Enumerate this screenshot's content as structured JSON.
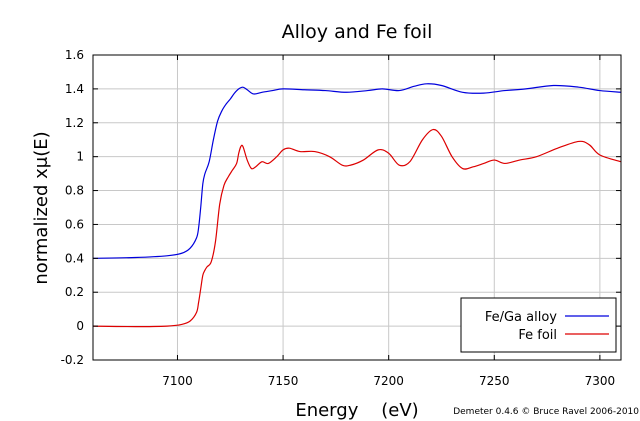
{
  "chart_data": {
    "type": "line",
    "title": "Alloy and Fe foil",
    "xlabel": "Energy    (eV)",
    "ylabel": "normalized xμ(E)",
    "credit": "Demeter 0.4.6 © Bruce Ravel 2006-2010",
    "xlim": [
      7060,
      7310
    ],
    "ylim": [
      -0.2,
      1.6
    ],
    "xticks": [
      7100,
      7150,
      7200,
      7250,
      7300
    ],
    "yticks": [
      -0.2,
      0,
      0.2,
      0.4,
      0.6,
      0.8,
      1,
      1.2,
      1.4,
      1.6
    ],
    "xtick_labels": [
      "7100",
      "7150",
      "7200",
      "7250",
      "7300"
    ],
    "ytick_labels": [
      "-0.2",
      "0",
      "0.2",
      "0.4",
      "0.6",
      "0.8",
      "1",
      "1.2",
      "1.4",
      "1.6"
    ],
    "grid": true,
    "legend_position": "bottom-right",
    "series": [
      {
        "name": "Fe/Ga alloy",
        "color": "#0000dd",
        "x": [
          7060,
          7080,
          7095,
          7102,
          7106,
          7109,
          7110,
          7111,
          7112,
          7113,
          7115,
          7117,
          7119,
          7121,
          7123,
          7125,
          7127,
          7129,
          7131,
          7133,
          7136,
          7140,
          7145,
          7150,
          7160,
          7170,
          7180,
          7190,
          7197,
          7205,
          7212,
          7218,
          7225,
          7235,
          7245,
          7255,
          7265,
          7278,
          7290,
          7300,
          7310
        ],
        "y": [
          0.4,
          0.405,
          0.415,
          0.43,
          0.46,
          0.52,
          0.58,
          0.7,
          0.84,
          0.9,
          0.97,
          1.1,
          1.21,
          1.27,
          1.31,
          1.34,
          1.375,
          1.4,
          1.41,
          1.395,
          1.37,
          1.38,
          1.39,
          1.4,
          1.395,
          1.39,
          1.38,
          1.39,
          1.4,
          1.39,
          1.415,
          1.43,
          1.42,
          1.38,
          1.375,
          1.39,
          1.4,
          1.42,
          1.41,
          1.39,
          1.38
        ]
      },
      {
        "name": "Fe foil",
        "color": "#dd0000",
        "x": [
          7060,
          7080,
          7095,
          7102,
          7106,
          7109,
          7110,
          7111,
          7112,
          7113,
          7114,
          7116,
          7118,
          7120,
          7122,
          7124,
          7126,
          7128,
          7129,
          7130,
          7131,
          7133,
          7135,
          7137,
          7140,
          7143,
          7147,
          7150,
          7153,
          7158,
          7165,
          7172,
          7178,
          7182,
          7188,
          7195,
          7200,
          7205,
          7210,
          7216,
          7221,
          7225,
          7230,
          7235,
          7240,
          7245,
          7250,
          7255,
          7262,
          7270,
          7280,
          7290,
          7295,
          7300,
          7310
        ],
        "y": [
          0.0,
          -0.003,
          0.0,
          0.01,
          0.03,
          0.08,
          0.14,
          0.22,
          0.3,
          0.33,
          0.35,
          0.38,
          0.5,
          0.72,
          0.83,
          0.88,
          0.92,
          0.96,
          1.02,
          1.06,
          1.06,
          0.98,
          0.93,
          0.94,
          0.97,
          0.96,
          1.0,
          1.04,
          1.05,
          1.03,
          1.03,
          1.0,
          0.95,
          0.95,
          0.98,
          1.04,
          1.02,
          0.95,
          0.97,
          1.1,
          1.16,
          1.12,
          1.0,
          0.93,
          0.94,
          0.96,
          0.98,
          0.96,
          0.98,
          1.0,
          1.05,
          1.09,
          1.07,
          1.01,
          0.97
        ]
      }
    ]
  }
}
